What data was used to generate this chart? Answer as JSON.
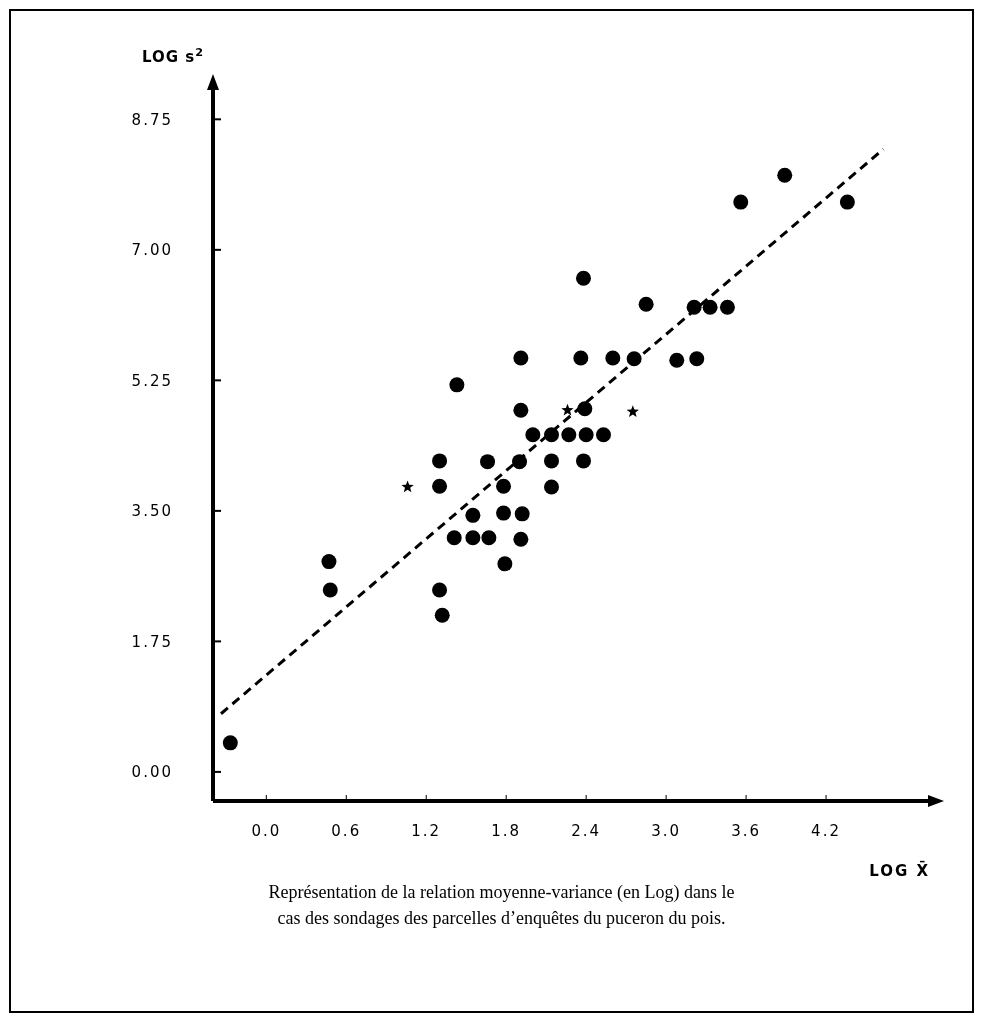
{
  "chart_data": {
    "type": "scatter",
    "xlabel": "LOG X̄",
    "ylabel": "LOG s$^{2}$",
    "xlim": [
      -0.4,
      4.98
    ],
    "ylim": [
      -0.39,
      9.17
    ],
    "xticks": [
      {
        "value": 0,
        "label": "0.0"
      },
      0.6,
      1.2,
      1.8,
      2.4,
      {
        "value": 3,
        "label": "3.0"
      },
      3.6,
      4.2
    ],
    "yticks": [
      {
        "value": 0,
        "label": "0.00"
      },
      1.75,
      {
        "value": 3.5,
        "label": "3.50"
      },
      5.25,
      {
        "value": 7,
        "label": "7.00"
      },
      8.75
    ],
    "grid": false,
    "annotations": [
      "Représentation de la relation moyenne-variance (en Log) dans le cas des sondages des parcelles d’enquêtes du puceron du pois."
    ],
    "series": [
      {
        "marker": "circle",
        "color": "#000000",
        "x": [
          -0.27,
          0.47,
          0.48,
          1.3,
          1.3,
          1.3,
          1.32,
          1.43,
          1.41,
          1.55,
          1.55,
          1.66,
          1.67,
          1.78,
          1.78,
          1.79,
          1.91,
          1.9,
          1.92,
          1.91,
          1.91,
          2.39,
          2.0,
          2.14,
          2.27,
          2.4,
          2.53,
          2.14,
          2.38,
          2.14,
          2.36,
          2.6,
          2.76,
          3.08,
          3.23,
          2.38,
          2.85,
          3.21,
          3.33,
          3.46,
          3.56,
          3.89,
          4.36
        ],
        "values": [
          0.39,
          2.82,
          2.44,
          4.17,
          3.83,
          2.44,
          2.1,
          5.19,
          3.14,
          3.44,
          3.14,
          4.16,
          3.14,
          3.83,
          3.47,
          2.79,
          4.85,
          4.16,
          3.46,
          3.12,
          5.55,
          4.87,
          4.52,
          4.52,
          4.52,
          4.52,
          4.52,
          4.17,
          4.17,
          3.82,
          5.55,
          5.55,
          5.54,
          5.52,
          5.54,
          6.62,
          6.27,
          6.23,
          6.23,
          6.23,
          7.64,
          8.0,
          7.64
        ]
      },
      {
        "marker": "star",
        "color": "#000000",
        "x": [
          1.06,
          2.26,
          2.75
        ],
        "values": [
          3.82,
          4.85,
          4.83
        ]
      },
      {
        "type": "line",
        "marker": "none",
        "line_style": "dashed",
        "color": "#000000",
        "x": [
          -0.34,
          4.63
        ],
        "values": [
          0.78,
          8.35
        ]
      }
    ]
  }
}
